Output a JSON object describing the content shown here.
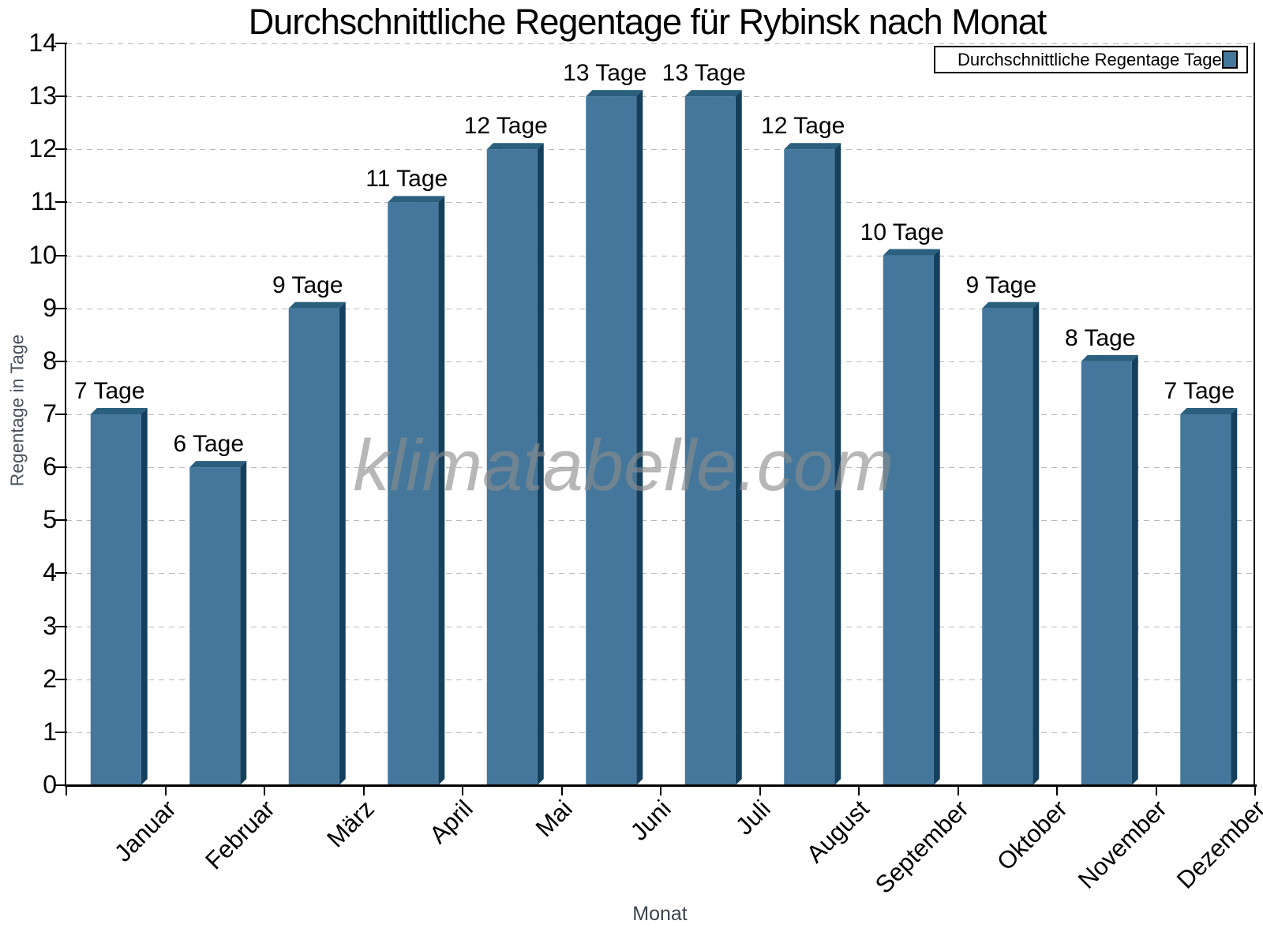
{
  "title": "Durchschnittliche Regentage für Rybinsk nach Monat",
  "watermark": "klimatabelle.com",
  "legend": {
    "label": "Durchschnittliche Regentage Tage",
    "swatch_color": "#44779B",
    "position": "top-right"
  },
  "chart_data": {
    "type": "bar",
    "title": "Durchschnittliche Regentage für Rybinsk nach Monat",
    "categories": [
      "Januar",
      "Februar",
      "März",
      "April",
      "Mai",
      "Juni",
      "Juli",
      "August",
      "September",
      "Oktober",
      "November",
      "Dezember"
    ],
    "values": [
      7,
      6,
      9,
      11,
      12,
      13,
      13,
      12,
      10,
      9,
      8,
      7
    ],
    "unit": "Tage",
    "xlabel": "Monat",
    "ylabel": "Regentage in Tage",
    "ylim": [
      0,
      14
    ],
    "ytick_step": 1,
    "grid": "horizontal-dashed",
    "legend_position": "top-right",
    "bar_style": "3d",
    "colors": {
      "bar_front": "#44779B",
      "bar_top": "#2B5F7E",
      "bar_side": "#15405D",
      "gridline": "#b9b9b9",
      "axis": "#000000",
      "axis_title": "#3e444c",
      "watermark": "#8c8c8c"
    }
  }
}
